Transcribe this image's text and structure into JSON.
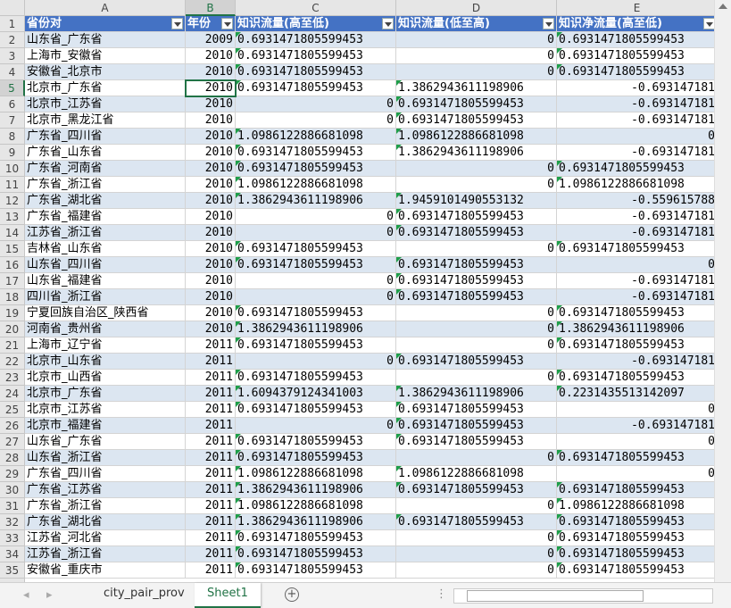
{
  "column_headers": [
    "A",
    "B",
    "C",
    "D",
    "E"
  ],
  "row_numbers": [
    1,
    2,
    3,
    4,
    5,
    6,
    7,
    8,
    9,
    10,
    11,
    12,
    13,
    14,
    15,
    16,
    17,
    18,
    19,
    20,
    21,
    22,
    23,
    24,
    25,
    26,
    27,
    28,
    29,
    30,
    31,
    32,
    33,
    34,
    35
  ],
  "table": {
    "header": [
      "省份对",
      "年份",
      "知识流量(高至低)",
      "知识流量(低至高)",
      "知识净流量(高至低)"
    ],
    "rows": [
      [
        "山东省_广东省",
        "2009",
        "0.6931471805599453",
        "0",
        "0.6931471805599453"
      ],
      [
        "上海市_安徽省",
        "2010",
        "0.6931471805599453",
        "0",
        "0.6931471805599453"
      ],
      [
        "安徽省_北京市",
        "2010",
        "0.6931471805599453",
        "0",
        "0.6931471805599453"
      ],
      [
        "北京市_广东省",
        "2010",
        "0.6931471805599453",
        "1.3862943611198906",
        "-0.693147181"
      ],
      [
        "北京市_江苏省",
        "2010",
        "0",
        "0.6931471805599453",
        "-0.693147181"
      ],
      [
        "北京市_黑龙江省",
        "2010",
        "0",
        "0.6931471805599453",
        "-0.693147181"
      ],
      [
        "广东省_四川省",
        "2010",
        "1.0986122886681098",
        "1.0986122886681098",
        "0"
      ],
      [
        "广东省_山东省",
        "2010",
        "0.6931471805599453",
        "1.3862943611198906",
        "-0.693147181"
      ],
      [
        "广东省_河南省",
        "2010",
        "0.6931471805599453",
        "0",
        "0.6931471805599453"
      ],
      [
        "广东省_浙江省",
        "2010",
        "1.0986122886681098",
        "0",
        "1.0986122886681098"
      ],
      [
        "广东省_湖北省",
        "2010",
        "1.3862943611198906",
        "1.9459101490553132",
        "-0.559615788"
      ],
      [
        "广东省_福建省",
        "2010",
        "0",
        "0.6931471805599453",
        "-0.693147181"
      ],
      [
        "江苏省_浙江省",
        "2010",
        "0",
        "0.6931471805599453",
        "-0.693147181"
      ],
      [
        "吉林省_山东省",
        "2010",
        "0.6931471805599453",
        "0",
        "0.6931471805599453"
      ],
      [
        "山东省_四川省",
        "2010",
        "0.6931471805599453",
        "0.6931471805599453",
        "0"
      ],
      [
        "山东省_福建省",
        "2010",
        "0",
        "0.6931471805599453",
        "-0.693147181"
      ],
      [
        "四川省_浙江省",
        "2010",
        "0",
        "0.6931471805599453",
        "-0.693147181"
      ],
      [
        "宁夏回族自治区_陕西省",
        "2010",
        "0.6931471805599453",
        "0",
        "0.6931471805599453"
      ],
      [
        "河南省_贵州省",
        "2010",
        "1.3862943611198906",
        "0",
        "1.3862943611198906"
      ],
      [
        "上海市_辽宁省",
        "2011",
        "0.6931471805599453",
        "0",
        "0.6931471805599453"
      ],
      [
        "北京市_山东省",
        "2011",
        "0",
        "0.6931471805599453",
        "-0.693147181"
      ],
      [
        "北京市_山西省",
        "2011",
        "0.6931471805599453",
        "0",
        "0.6931471805599453"
      ],
      [
        "北京市_广东省",
        "2011",
        "1.6094379124341003",
        "1.3862943611198906",
        "0.2231435513142097"
      ],
      [
        "北京市_江苏省",
        "2011",
        "0.6931471805599453",
        "0.6931471805599453",
        "0"
      ],
      [
        "北京市_福建省",
        "2011",
        "0",
        "0.6931471805599453",
        "-0.693147181"
      ],
      [
        "山东省_广东省",
        "2011",
        "0.6931471805599453",
        "0.6931471805599453",
        "0"
      ],
      [
        "山东省_浙江省",
        "2011",
        "0.6931471805599453",
        "0",
        "0.6931471805599453"
      ],
      [
        "广东省_四川省",
        "2011",
        "1.0986122886681098",
        "1.0986122886681098",
        "0"
      ],
      [
        "广东省_江苏省",
        "2011",
        "1.3862943611198906",
        "0.6931471805599453",
        "0.6931471805599453"
      ],
      [
        "广东省_浙江省",
        "2011",
        "1.0986122886681098",
        "0",
        "1.0986122886681098"
      ],
      [
        "广东省_湖北省",
        "2011",
        "1.3862943611198906",
        "0.6931471805599453",
        "0.6931471805599453"
      ],
      [
        "江苏省_河北省",
        "2011",
        "0.6931471805599453",
        "0",
        "0.6931471805599453"
      ],
      [
        "江苏省_浙江省",
        "2011",
        "0.6931471805599453",
        "0",
        "0.6931471805599453"
      ],
      [
        "安徽省_重庆市",
        "2011",
        "0.6931471805599453",
        "0",
        "0.6931471805599453"
      ]
    ]
  },
  "sheet_tabs": [
    "city_pair_prov",
    "Sheet1"
  ]
}
